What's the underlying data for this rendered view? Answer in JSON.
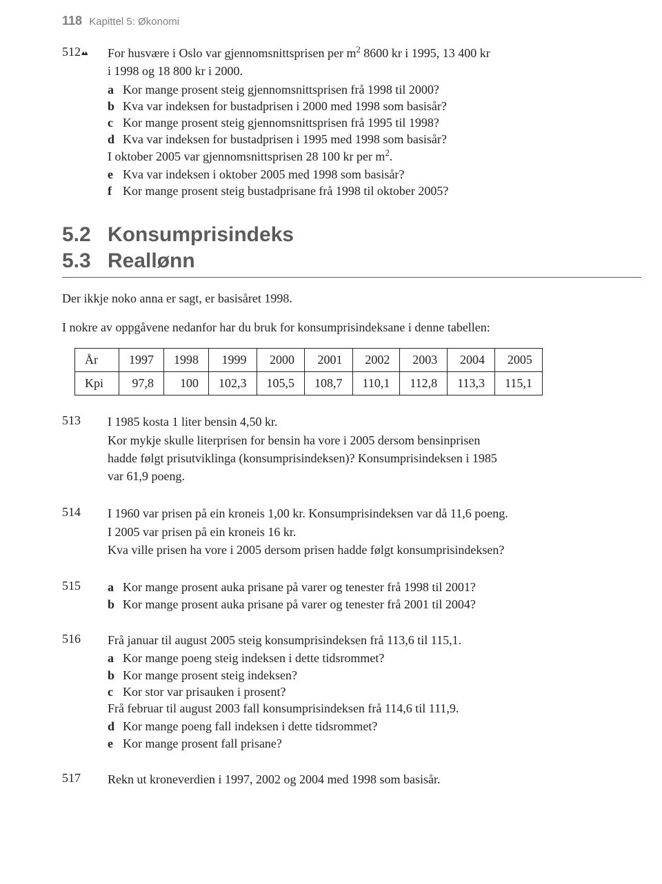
{
  "page": {
    "number": "118",
    "chapter": "Kapittel 5: Økonomi"
  },
  "ex512": {
    "num": "512",
    "markers": "▴▴",
    "intro1": "For husvære i Oslo var gjennomsnittsprisen per m",
    "intro1_sup": "2",
    "intro1b": " 8600 kr i 1995, 13 400 kr",
    "intro2": "i 1998 og 18 800 kr i 2000.",
    "a": "Kor mange prosent steig gjennomsnittsprisen frå 1998 til 2000?",
    "b": "Kva var indeksen for bustadprisen i 2000 med 1998 som basisår?",
    "c": "Kor mange prosent steig gjennomsnittsprisen frå 1995 til 1998?",
    "d": "Kva var indeksen for bustadprisen i 1995 med 1998 som basisår?",
    "mid1": "I oktober 2005 var gjennomsnittsprisen 28 100 kr per m",
    "mid1_sup": "2",
    "mid1b": ".",
    "e": "Kva var indeksen i oktober 2005 med 1998 som basisår?",
    "f": "Kor mange prosent steig bustadprisane frå 1998 til oktober 2005?"
  },
  "sec52": {
    "num": "5.2",
    "title": "Konsumprisindeks"
  },
  "sec53": {
    "num": "5.3",
    "title": "Reallønn"
  },
  "note1": "Der ikkje noko anna er sagt, er basisåret 1998.",
  "note2": "I nokre av oppgåvene nedanfor har du bruk for konsumprisindeksane i denne tabellen:",
  "kpi": {
    "row1_label": "År",
    "row2_label": "Kpi",
    "years": [
      "1997",
      "1998",
      "1999",
      "2000",
      "2001",
      "2002",
      "2003",
      "2004",
      "2005"
    ],
    "values": [
      "97,8",
      "100",
      "102,3",
      "105,5",
      "108,7",
      "110,1",
      "112,8",
      "113,3",
      "115,1"
    ]
  },
  "ex513": {
    "num": "513",
    "l1": "I 1985 kosta 1 liter bensin 4,50 kr.",
    "l2": "Kor mykje skulle literprisen for bensin ha vore i 2005 dersom bensinprisen",
    "l3": "hadde følgt prisutviklinga (konsumprisindeksen)? Konsumprisindeksen i 1985",
    "l4": "var 61,9 poeng."
  },
  "ex514": {
    "num": "514",
    "l1": "I 1960 var prisen på ein kroneis 1,00 kr. Konsumprisindeksen var då 11,6 poeng.",
    "l2": "I 2005 var prisen på ein kroneis 16 kr.",
    "l3": "Kva ville prisen ha vore i 2005 dersom prisen hadde følgt konsumprisindeksen?"
  },
  "ex515": {
    "num": "515",
    "a": "Kor mange prosent auka prisane på varer og tenester frå 1998 til 2001?",
    "b": "Kor mange prosent auka prisane på varer og tenester frå 2001 til 2004?"
  },
  "ex516": {
    "num": "516",
    "l1": "Frå januar til august 2005 steig konsumprisindeksen frå 113,6 til 115,1.",
    "a": "Kor mange poeng steig indeksen i dette tidsrommet?",
    "b": "Kor mange prosent steig indeksen?",
    "c": "Kor stor var prisauken i prosent?",
    "l2": "Frå februar til august 2003 fall konsumprisindeksen frå 114,6 til 111,9.",
    "d": "Kor mange poeng fall indeksen i dette tidsrommet?",
    "e": "Kor mange prosent fall prisane?"
  },
  "ex517": {
    "num": "517",
    "l1": "Rekn ut kroneverdien i 1997, 2002 og 2004 med 1998 som basisår."
  }
}
